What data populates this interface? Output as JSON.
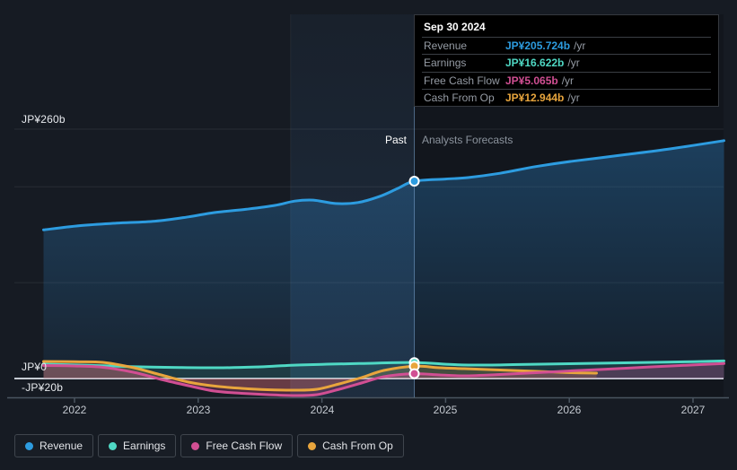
{
  "tooltip": {
    "title": "Sep 30 2024",
    "rows": [
      {
        "label": "Revenue",
        "value": "JP¥205.724b",
        "suffix": "/yr",
        "color": "#2D9CE0"
      },
      {
        "label": "Earnings",
        "value": "JP¥16.622b",
        "suffix": "/yr",
        "color": "#4FD8C4"
      },
      {
        "label": "Free Cash Flow",
        "value": "JP¥5.065b",
        "suffix": "/yr",
        "color": "#D14F93"
      },
      {
        "label": "Cash From Op",
        "value": "JP¥12.944b",
        "suffix": "/yr",
        "color": "#E8A53D"
      }
    ]
  },
  "sections": {
    "past_label": "Past",
    "forecast_label": "Analysts Forecasts"
  },
  "axis": {
    "y_labels": [
      "JP¥260b",
      "JP¥0",
      "-JP¥20b"
    ],
    "x_labels": [
      "2022",
      "2023",
      "2024",
      "2025",
      "2026",
      "2027"
    ]
  },
  "legend": {
    "items": [
      {
        "label": "Revenue",
        "color": "#2D9CE0"
      },
      {
        "label": "Earnings",
        "color": "#4FD8C4"
      },
      {
        "label": "Free Cash Flow",
        "color": "#D14F93"
      },
      {
        "label": "Cash From Op",
        "color": "#E8A53D"
      }
    ]
  },
  "chart_data": {
    "type": "line",
    "unit": "JP¥ billions per year",
    "x_ticks": [
      2022,
      2023,
      2024,
      2025,
      2026,
      2027
    ],
    "ylim": [
      -20,
      260
    ],
    "gridline_values": [
      260,
      200,
      100
    ],
    "zero_line": 0,
    "divider_x": 2024.747,
    "past_band_start": 2023.747,
    "legend_position": "bottom",
    "series": [
      {
        "name": "Revenue",
        "color": "#2D9CE0",
        "fill": "url(#gradRev)",
        "marker_value": 205.724,
        "points": [
          [
            2021.75,
            155
          ],
          [
            2022.05,
            159.5
          ],
          [
            2022.34,
            162
          ],
          [
            2022.65,
            164
          ],
          [
            2022.92,
            168.5
          ],
          [
            2023.13,
            173
          ],
          [
            2023.39,
            176.5
          ],
          [
            2023.62,
            180.5
          ],
          [
            2023.78,
            185
          ],
          [
            2023.93,
            186
          ],
          [
            2024.11,
            182.5
          ],
          [
            2024.29,
            183.5
          ],
          [
            2024.47,
            190
          ],
          [
            2024.61,
            198
          ],
          [
            2024.747,
            205.724
          ],
          [
            2025.0,
            208
          ],
          [
            2025.18,
            209.5
          ],
          [
            2025.44,
            214
          ],
          [
            2025.73,
            221
          ],
          [
            2026.02,
            226.5
          ],
          [
            2026.46,
            233.5
          ],
          [
            2026.82,
            239.5
          ],
          [
            2027.25,
            248
          ]
        ]
      },
      {
        "name": "Earnings",
        "color": "#4FD8C4",
        "fill": "rgba(79,216,196,0.13)",
        "marker_value": 16.622,
        "points": [
          [
            2021.75,
            15.0
          ],
          [
            2022.1,
            13.8
          ],
          [
            2022.45,
            12.4
          ],
          [
            2022.85,
            11.5
          ],
          [
            2023.2,
            11.2
          ],
          [
            2023.5,
            12.2
          ],
          [
            2023.75,
            13.8
          ],
          [
            2024.0,
            14.8
          ],
          [
            2024.3,
            15.6
          ],
          [
            2024.747,
            16.622
          ],
          [
            2025.05,
            14.6
          ],
          [
            2025.3,
            14.0
          ],
          [
            2025.6,
            14.6
          ],
          [
            2026.0,
            15.4
          ],
          [
            2026.5,
            16.5
          ],
          [
            2027.0,
            17.6
          ],
          [
            2027.25,
            18.3
          ]
        ]
      },
      {
        "name": "Cash From Op",
        "color": "#E8A53D",
        "fill": "rgba(232,165,61,0.20)",
        "marker_value": 12.944,
        "points": [
          [
            2021.75,
            17.8
          ],
          [
            2022.0,
            17.5
          ],
          [
            2022.23,
            16.8
          ],
          [
            2022.48,
            11.2
          ],
          [
            2022.7,
            3.7
          ],
          [
            2022.92,
            -3.7
          ],
          [
            2023.13,
            -7.9
          ],
          [
            2023.35,
            -10.3
          ],
          [
            2023.56,
            -11.7
          ],
          [
            2023.78,
            -12.2
          ],
          [
            2023.96,
            -11.2
          ],
          [
            2024.14,
            -5.6
          ],
          [
            2024.32,
            0.9
          ],
          [
            2024.5,
            8.4
          ],
          [
            2024.747,
            12.944
          ],
          [
            2024.95,
            11.2
          ],
          [
            2025.15,
            10.3
          ],
          [
            2025.44,
            8.9
          ],
          [
            2025.73,
            7.5
          ],
          [
            2026.02,
            6.1
          ],
          [
            2026.22,
            5.6
          ]
        ]
      },
      {
        "name": "Free Cash Flow",
        "color": "#D14F93",
        "fill": "rgba(209,79,147,0.27)",
        "marker_value": 5.065,
        "points": [
          [
            2021.75,
            13.6
          ],
          [
            2022.0,
            13.1
          ],
          [
            2022.23,
            11.7
          ],
          [
            2022.48,
            6.5
          ],
          [
            2022.7,
            -0.9
          ],
          [
            2022.92,
            -7.5
          ],
          [
            2023.13,
            -13.1
          ],
          [
            2023.35,
            -15.4
          ],
          [
            2023.56,
            -16.8
          ],
          [
            2023.78,
            -17.8
          ],
          [
            2023.96,
            -16.8
          ],
          [
            2024.14,
            -11.2
          ],
          [
            2024.32,
            -4.7
          ],
          [
            2024.5,
            1.9
          ],
          [
            2024.747,
            5.065
          ],
          [
            2024.95,
            3.7
          ],
          [
            2025.15,
            2.8
          ],
          [
            2025.44,
            4.2
          ],
          [
            2025.73,
            6.1
          ],
          [
            2026.02,
            8.0
          ],
          [
            2026.46,
            10.8
          ],
          [
            2026.82,
            13.1
          ],
          [
            2027.25,
            15.6
          ]
        ]
      }
    ]
  }
}
